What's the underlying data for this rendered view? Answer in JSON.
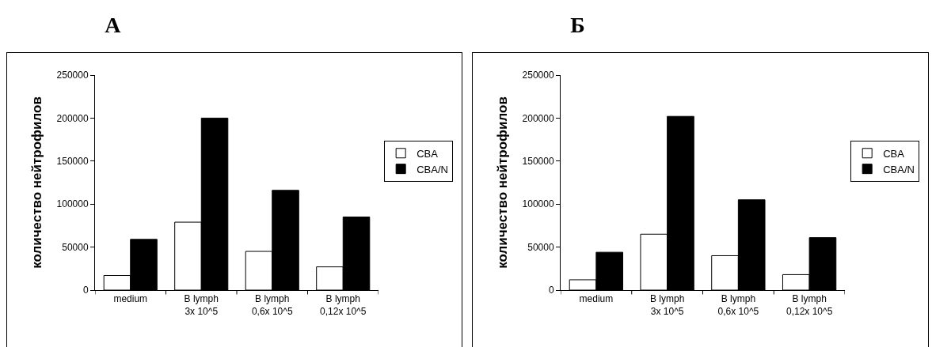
{
  "chart_data": [
    {
      "type": "bar",
      "title": "А",
      "ylabel": "количество нейтрофилов",
      "categories": [
        "medium",
        "B lymph\n3x 10^5",
        "B lymph\n0,6x 10^5",
        "B lymph\n0,12x 10^5"
      ],
      "series": [
        {
          "name": "CBA",
          "color": "#ffffff",
          "values": [
            17000,
            79000,
            45000,
            27000
          ]
        },
        {
          "name": "CBA/N",
          "color": "#000000",
          "values": [
            59000,
            200000,
            116000,
            85000
          ]
        }
      ],
      "ylim": [
        0,
        250000
      ],
      "yticks": [
        0,
        50000,
        100000,
        150000,
        200000,
        250000
      ],
      "grid": false,
      "legend": "right"
    },
    {
      "type": "bar",
      "title": "Б",
      "ylabel": "количество нейтрофилов",
      "categories": [
        "medium",
        "B lymph\n3x 10^5",
        "B lymph\n0,6x 10^5",
        "B lymph\n0,12x 10^5"
      ],
      "series": [
        {
          "name": "CBA",
          "color": "#ffffff",
          "values": [
            12000,
            65000,
            40000,
            18000
          ]
        },
        {
          "name": "CBA/N",
          "color": "#000000",
          "values": [
            44000,
            202000,
            105000,
            61000
          ]
        }
      ],
      "ylim": [
        0,
        250000
      ],
      "yticks": [
        0,
        50000,
        100000,
        150000,
        200000,
        250000
      ],
      "grid": false,
      "legend": "right"
    }
  ]
}
